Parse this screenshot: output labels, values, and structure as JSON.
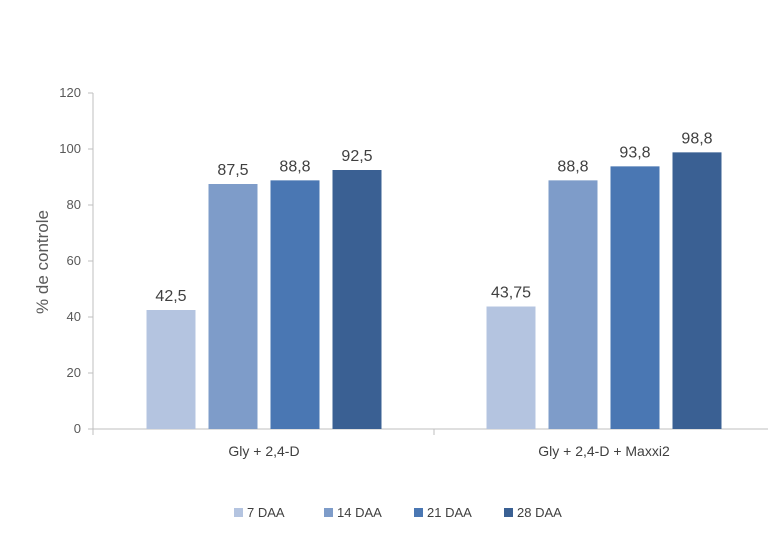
{
  "chart_data": {
    "type": "bar",
    "title": "",
    "xlabel": "",
    "ylabel": "% de controle",
    "ylim": [
      0,
      120
    ],
    "yticks": [
      0,
      20,
      40,
      60,
      80,
      100,
      120
    ],
    "grid": false,
    "legend_position": "bottom",
    "categories": [
      "Gly + 2,4-D",
      "Gly + 2,4-D + Maxxi2"
    ],
    "series": [
      {
        "name": "7 DAA",
        "color": "#b4c4e0",
        "values": [
          42.5,
          43.75
        ],
        "labels": [
          "42,5",
          "43,75"
        ]
      },
      {
        "name": "14 DAA",
        "color": "#7e9cc9",
        "values": [
          87.5,
          88.8
        ],
        "labels": [
          "87,5",
          "88,8"
        ]
      },
      {
        "name": "21 DAA",
        "color": "#4a77b3",
        "values": [
          88.8,
          93.8
        ],
        "labels": [
          "88,8",
          "93,8"
        ]
      },
      {
        "name": "28 DAA",
        "color": "#3a6093",
        "values": [
          92.5,
          98.8
        ],
        "labels": [
          "92,5",
          "98,8"
        ]
      }
    ]
  }
}
